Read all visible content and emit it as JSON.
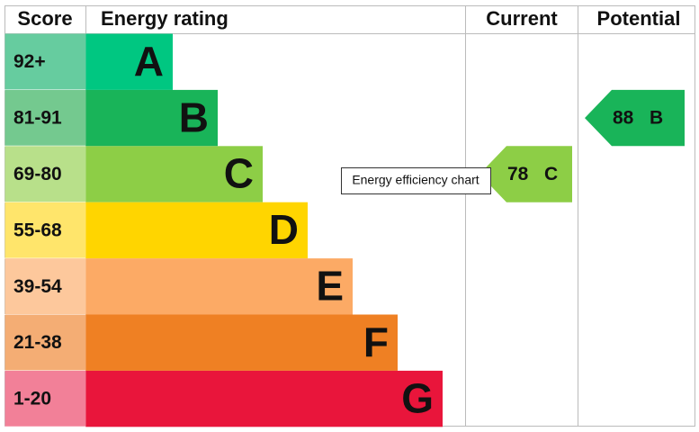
{
  "chart_data": {
    "type": "epc",
    "headers": [
      "Score",
      "Energy rating",
      "Current",
      "Potential"
    ],
    "bands": [
      {
        "score": "92+",
        "letter": "A",
        "color": "#00c781",
        "score_color": "#66cc9f"
      },
      {
        "score": "81-91",
        "letter": "B",
        "color": "#19b459",
        "score_color": "#74c98f"
      },
      {
        "score": "69-80",
        "letter": "C",
        "color": "#8dce46",
        "score_color": "#b8e08a"
      },
      {
        "score": "55-68",
        "letter": "D",
        "color": "#ffd500",
        "score_color": "#ffe56b"
      },
      {
        "score": "39-54",
        "letter": "E",
        "color": "#fcaa65",
        "score_color": "#fdc89c"
      },
      {
        "score": "21-38",
        "letter": "F",
        "color": "#ef8023",
        "score_color": "#f4ad74"
      },
      {
        "score": "1-20",
        "letter": "G",
        "color": "#e9153b",
        "score_color": "#f28098"
      }
    ],
    "current": {
      "value": 78,
      "letter": "C"
    },
    "potential": {
      "value": 88,
      "letter": "B"
    },
    "tooltip": "Energy efficiency chart"
  }
}
